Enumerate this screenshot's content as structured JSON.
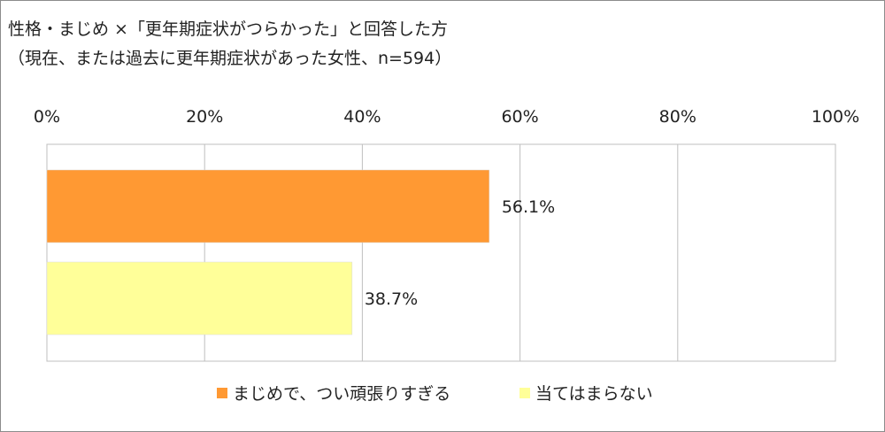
{
  "title_line1": "性格・まじめ ×「更年期症状がつらかった」と回答した方",
  "title_line2": "（現在、または過去に更年期症状があった女性、n=594）",
  "chart_data": {
    "type": "bar",
    "orientation": "horizontal",
    "categories": [
      "まじめで、つい頑張りすぎる",
      "当てはまらない"
    ],
    "values": [
      56.1,
      38.7
    ],
    "data_labels": [
      "56.1%",
      "38.7%"
    ],
    "colors": [
      "#ff9933",
      "#ffff99"
    ],
    "xlim": [
      0,
      100
    ],
    "x_ticks": [
      0,
      20,
      40,
      60,
      80,
      100
    ],
    "x_tick_labels": [
      "0%",
      "20%",
      "40%",
      "60%",
      "80%",
      "100%"
    ],
    "x_axis_position": "top",
    "grid": true,
    "legend_position": "bottom"
  }
}
